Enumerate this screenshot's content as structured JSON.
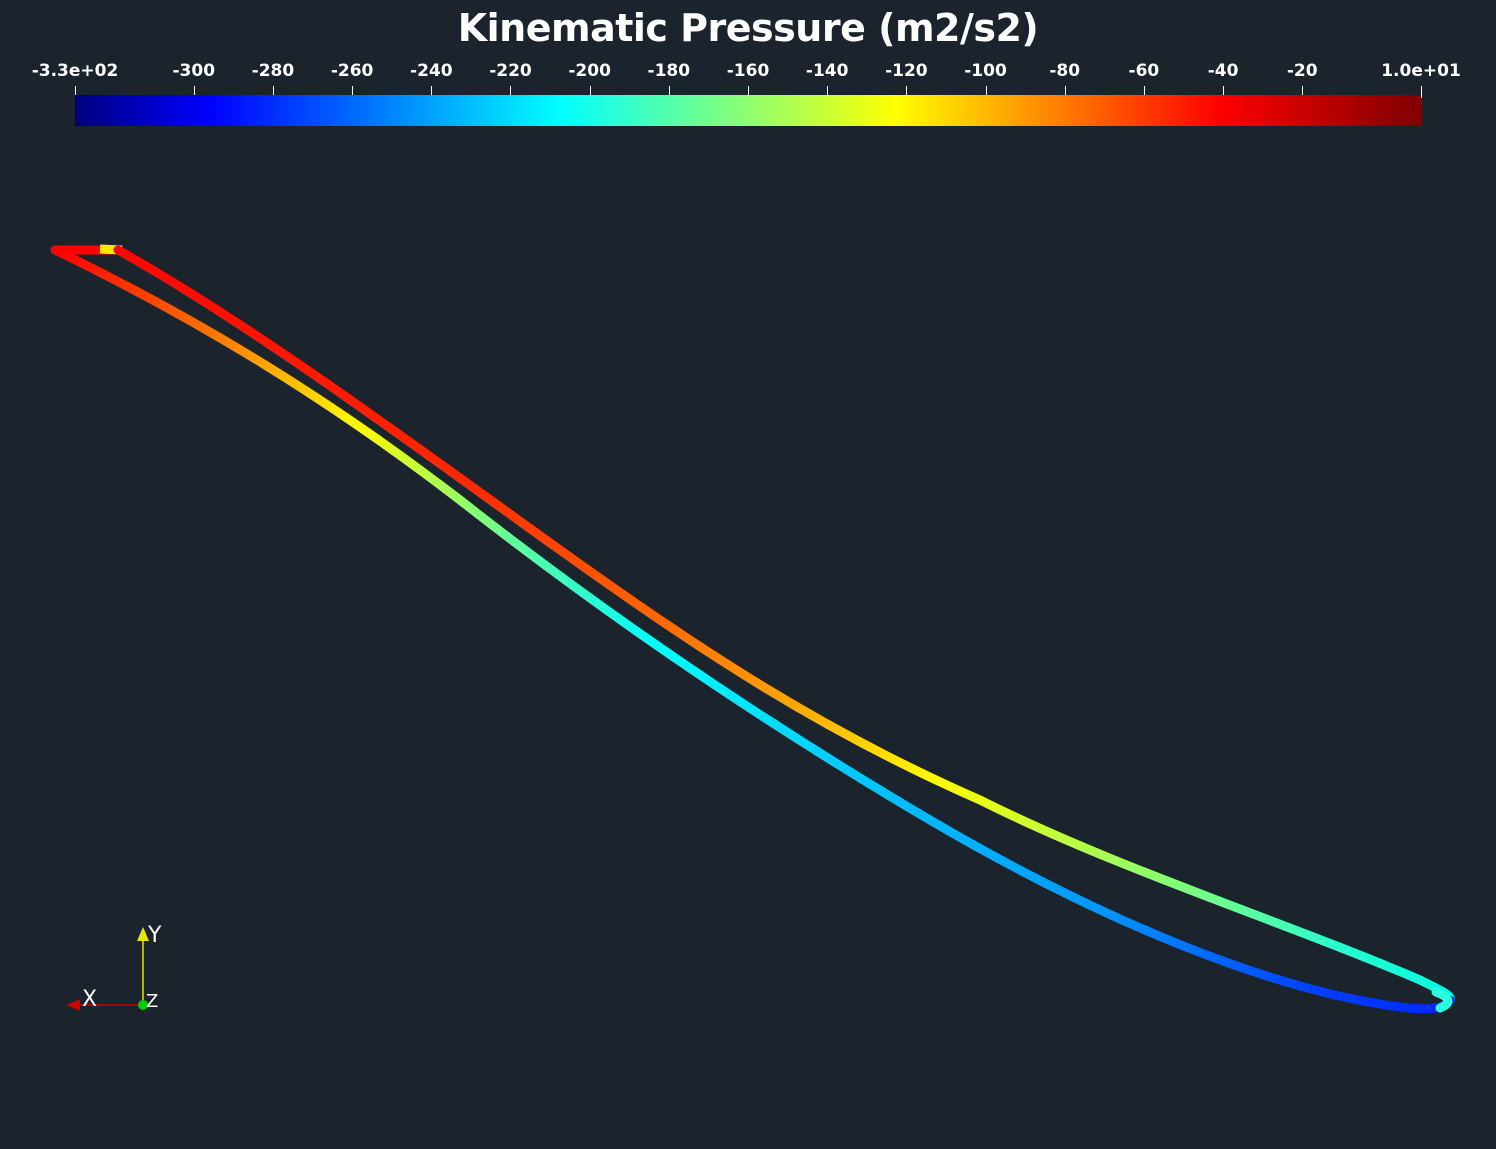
{
  "title": "Kinematic Pressure (m2/s2)",
  "colorbar": {
    "colormap": "jet",
    "min": -330,
    "max": 10,
    "colors": [
      "#00007f",
      "#0000ff",
      "#00ffff",
      "#ffff00",
      "#ff0000",
      "#7f0000"
    ],
    "ticks": [
      {
        "label": "-3.3e+02",
        "value": -330
      },
      {
        "label": "-300",
        "value": -300
      },
      {
        "label": "-280",
        "value": -280
      },
      {
        "label": "-260",
        "value": -260
      },
      {
        "label": "-240",
        "value": -240
      },
      {
        "label": "-220",
        "value": -220
      },
      {
        "label": "-200",
        "value": -200
      },
      {
        "label": "-180",
        "value": -180
      },
      {
        "label": "-160",
        "value": -160
      },
      {
        "label": "-140",
        "value": -140
      },
      {
        "label": "-120",
        "value": -120
      },
      {
        "label": "-100",
        "value": -100
      },
      {
        "label": "-80",
        "value": -80
      },
      {
        "label": "-60",
        "value": -60
      },
      {
        "label": "-40",
        "value": -40
      },
      {
        "label": "-20",
        "value": -20
      },
      {
        "label": "1.0e+01",
        "value": 10
      }
    ]
  },
  "axes": {
    "x_label": "X",
    "y_label": "Y",
    "z_label": "Z",
    "x_color": "#cc0000",
    "y_color": "#e6e600",
    "z_color": "#00cc00"
  },
  "background": "#1b232d"
}
